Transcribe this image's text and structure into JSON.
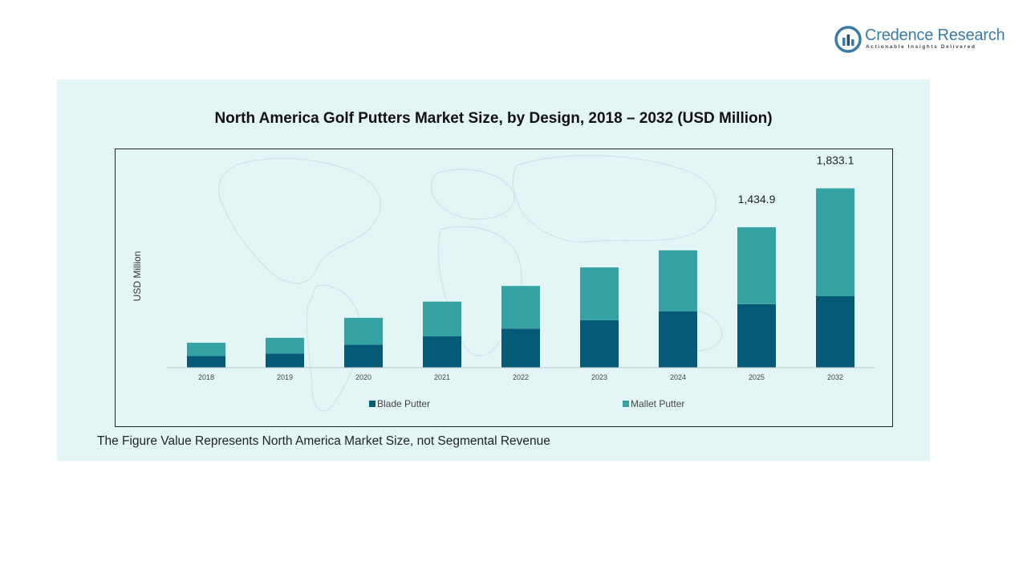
{
  "brand": {
    "name": "Credence Research",
    "tagline": "Actionable Insights Delivered",
    "color": "#3a7ca5"
  },
  "footnote": "The Figure Value Represents North America Market Size, not Segmental Revenue",
  "chart_data": {
    "type": "bar",
    "stacked": true,
    "title": "North America Golf Putters Market Size, by Design, 2018 – 2032 (USD Million)",
    "xlabel": "",
    "ylabel": "USD Million",
    "categories": [
      "2018",
      "2019",
      "2020",
      "2021",
      "2022",
      "2023",
      "2024",
      "2025",
      "2032"
    ],
    "series": [
      {
        "name": "Blade Putter",
        "color": "#055a78",
        "values": [
          120,
          145,
          235,
          320,
          400,
          485,
          575,
          650,
          730
        ]
      },
      {
        "name": "Mallet Putter",
        "color": "#35a3a4",
        "values": [
          135,
          160,
          275,
          355,
          435,
          540,
          625,
          784.9,
          1103.1
        ]
      }
    ],
    "totals_labels": [
      {
        "category": "2025",
        "text": "1,434.9"
      },
      {
        "category": "2032",
        "text": "1,833.1"
      }
    ],
    "ylim": [
      0,
      2150
    ],
    "grid": false,
    "legend": "bottom"
  }
}
